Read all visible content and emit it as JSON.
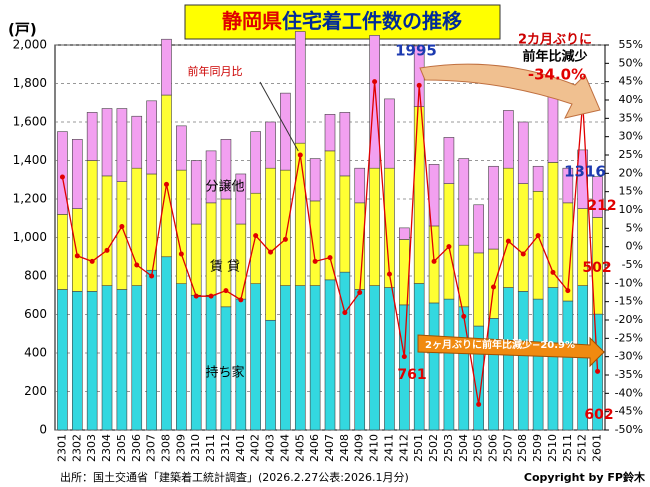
{
  "chart_data": {
    "type": "stacked-bar-line",
    "title": {
      "region": "静岡県",
      "text": "住宅着工件数の推移"
    },
    "y_label": "(戸)",
    "categories": [
      "2301",
      "2302",
      "2303",
      "2304",
      "2305",
      "2306",
      "2307",
      "2308",
      "2309",
      "2310",
      "2311",
      "2312",
      "2401",
      "2402",
      "2403",
      "2404",
      "2405",
      "2406",
      "2407",
      "2408",
      "2409",
      "2410",
      "2411",
      "2412",
      "2501",
      "2502",
      "2503",
      "2504",
      "2505",
      "2506",
      "2507",
      "2508",
      "2509",
      "2510",
      "2511",
      "2512",
      "2601"
    ],
    "series": [
      {
        "name": "持ち家",
        "color": "#33d8e0",
        "values": [
          730,
          720,
          720,
          750,
          730,
          750,
          830,
          900,
          760,
          700,
          700,
          640,
          680,
          760,
          570,
          750,
          750,
          750,
          780,
          820,
          730,
          750,
          740,
          650,
          761,
          660,
          680,
          640,
          540,
          580,
          740,
          720,
          680,
          740,
          670,
          750,
          602
        ]
      },
      {
        "name": "賃 貸",
        "color": "#ffff33",
        "values": [
          390,
          430,
          680,
          570,
          560,
          610,
          500,
          840,
          590,
          370,
          480,
          560,
          390,
          470,
          790,
          600,
          740,
          440,
          670,
          500,
          450,
          610,
          620,
          340,
          919,
          400,
          600,
          320,
          380,
          360,
          620,
          560,
          560,
          650,
          510,
          400,
          502
        ]
      },
      {
        "name": "分譲他",
        "color": "#f2a0f0",
        "values": [
          430,
          360,
          250,
          350,
          380,
          270,
          380,
          290,
          230,
          330,
          270,
          310,
          260,
          320,
          240,
          400,
          580,
          220,
          190,
          330,
          180,
          690,
          360,
          60,
          315,
          320,
          240,
          450,
          250,
          430,
          300,
          320,
          130,
          370,
          180,
          305,
          212
        ]
      },
      {
        "name": "前年同月比",
        "color": "#e00000",
        "axis": "y2",
        "values": [
          19,
          -2.5,
          -4,
          -1,
          5.5,
          -5,
          -8,
          17,
          -2,
          -13.5,
          -13.5,
          -12,
          -14.5,
          3,
          -1.5,
          2,
          25,
          -4,
          -3,
          -18,
          -12.5,
          45,
          -7.5,
          -30,
          44,
          -4,
          0,
          -19,
          -43,
          -11,
          1.5,
          -2,
          3,
          -7,
          -12,
          39.5,
          -34.0
        ]
      }
    ],
    "ylim": [
      0,
      2000
    ],
    "yticks": [
      0,
      200,
      400,
      600,
      800,
      {
        "value": 1000,
        "label": "1,000"
      },
      {
        "value": 1200,
        "label": "1,200"
      },
      {
        "value": 1400,
        "label": "1,400"
      },
      {
        "value": 1600,
        "label": "1,600"
      },
      {
        "value": 1800,
        "label": "1,800"
      },
      {
        "value": 2000,
        "label": "2,000"
      }
    ],
    "y2lim": [
      -50,
      55
    ],
    "y2ticks": [
      {
        "value": -50,
        "label": "-50%"
      },
      {
        "value": -45,
        "label": "-45%"
      },
      {
        "value": -40,
        "label": "-40%"
      },
      {
        "value": -35,
        "label": "-35%"
      },
      {
        "value": -30,
        "label": "-30%"
      },
      {
        "value": -25,
        "label": "-25%"
      },
      {
        "value": -20,
        "label": "-20%"
      },
      {
        "value": -15,
        "label": "-15%"
      },
      {
        "value": -10,
        "label": "-10%"
      },
      {
        "value": -5,
        "label": "-5%"
      },
      {
        "value": 0,
        "label": "0%"
      },
      {
        "value": 5,
        "label": "5%"
      },
      {
        "value": 10,
        "label": "10%"
      },
      {
        "value": 15,
        "label": "15%"
      },
      {
        "value": 20,
        "label": "20%"
      },
      {
        "value": 25,
        "label": "25%"
      },
      {
        "value": 30,
        "label": "30%"
      },
      {
        "value": 35,
        "label": "35%"
      },
      {
        "value": 40,
        "label": "40%"
      },
      {
        "value": 45,
        "label": "45%"
      },
      {
        "value": 50,
        "label": "50%"
      },
      {
        "value": 55,
        "label": "55%"
      }
    ],
    "grid": true,
    "annotations": [
      "1995",
      "1316",
      "2カ月ぶりに",
      "前年比減少",
      "-34.0%",
      "2ヶ月ぶりに前年比減少−20.9%"
    ],
    "source": "出所：国土交通省「建築着工統計調査」(2026.2.27公表:2026.1月分)",
    "copyright": "Copyright by FP鈴木"
  }
}
